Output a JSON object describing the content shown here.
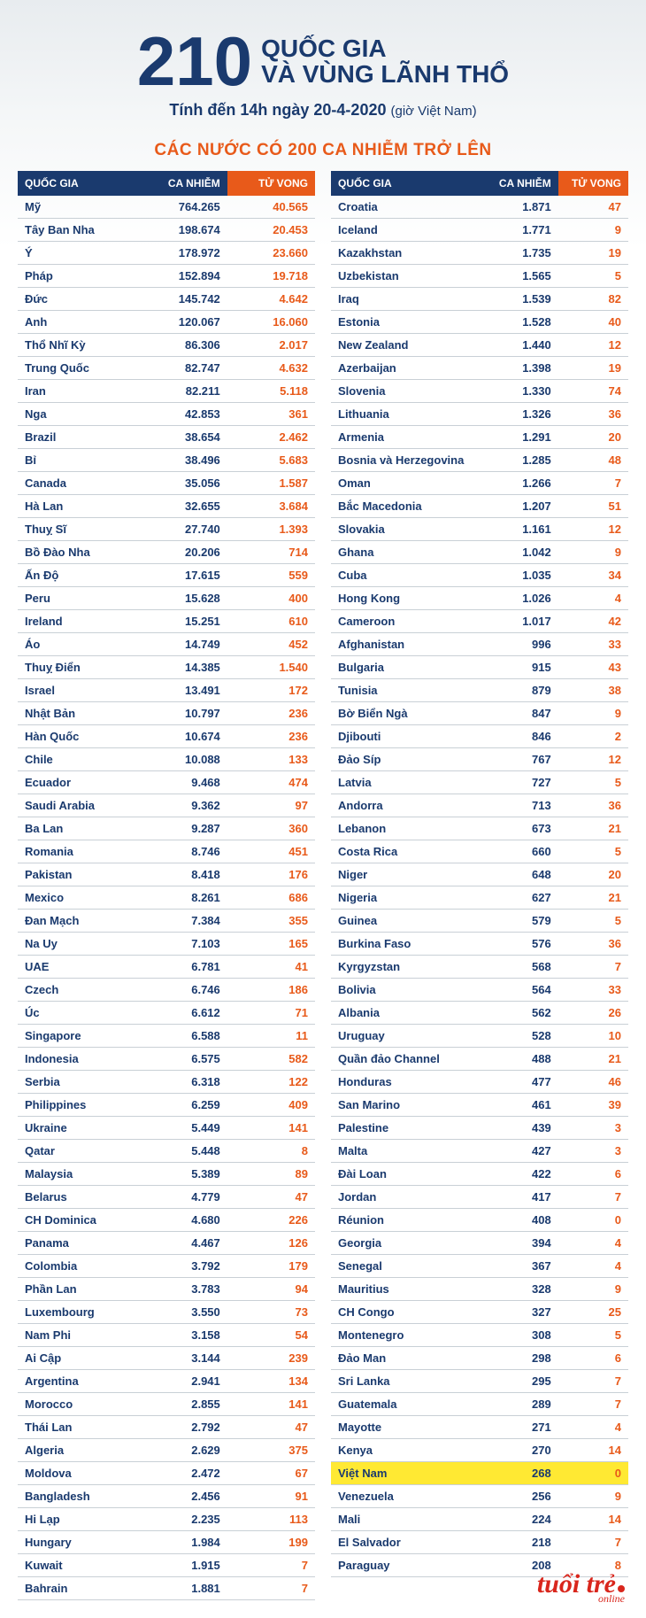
{
  "header": {
    "big_number": "210",
    "title_line1": "QUỐC GIA",
    "title_line2": "VÀ VÙNG LÃNH THỔ",
    "subtitle_main": "Tính đến 14h ngày 20-4-2020",
    "subtitle_tz": "(giờ Việt Nam)",
    "section_title": "CÁC NƯỚC CÓ 200 CA NHIỄM TRỞ LÊN"
  },
  "table": {
    "headers": {
      "country": "QUỐC GIA",
      "cases": "CA NHIỄM",
      "deaths": "TỬ VONG"
    },
    "left_rows": [
      {
        "c": "Mỹ",
        "n": "764.265",
        "d": "40.565"
      },
      {
        "c": "Tây Ban Nha",
        "n": "198.674",
        "d": "20.453"
      },
      {
        "c": "Ý",
        "n": "178.972",
        "d": "23.660"
      },
      {
        "c": "Pháp",
        "n": "152.894",
        "d": "19.718"
      },
      {
        "c": "Đức",
        "n": "145.742",
        "d": "4.642"
      },
      {
        "c": "Anh",
        "n": "120.067",
        "d": "16.060"
      },
      {
        "c": "Thổ Nhĩ Kỳ",
        "n": "86.306",
        "d": "2.017"
      },
      {
        "c": "Trung Quốc",
        "n": "82.747",
        "d": "4.632"
      },
      {
        "c": "Iran",
        "n": "82.211",
        "d": "5.118"
      },
      {
        "c": "Nga",
        "n": "42.853",
        "d": "361"
      },
      {
        "c": "Brazil",
        "n": "38.654",
        "d": "2.462"
      },
      {
        "c": "Bỉ",
        "n": "38.496",
        "d": "5.683"
      },
      {
        "c": "Canada",
        "n": "35.056",
        "d": "1.587"
      },
      {
        "c": "Hà Lan",
        "n": "32.655",
        "d": "3.684"
      },
      {
        "c": "Thuỵ Sĩ",
        "n": "27.740",
        "d": "1.393"
      },
      {
        "c": "Bồ Đào Nha",
        "n": "20.206",
        "d": "714"
      },
      {
        "c": "Ấn Độ",
        "n": "17.615",
        "d": "559"
      },
      {
        "c": "Peru",
        "n": "15.628",
        "d": "400"
      },
      {
        "c": "Ireland",
        "n": "15.251",
        "d": "610"
      },
      {
        "c": "Áo",
        "n": "14.749",
        "d": "452"
      },
      {
        "c": "Thuỵ Điển",
        "n": "14.385",
        "d": "1.540"
      },
      {
        "c": "Israel",
        "n": "13.491",
        "d": "172"
      },
      {
        "c": "Nhật Bản",
        "n": "10.797",
        "d": "236"
      },
      {
        "c": "Hàn Quốc",
        "n": "10.674",
        "d": "236"
      },
      {
        "c": "Chile",
        "n": "10.088",
        "d": "133"
      },
      {
        "c": "Ecuador",
        "n": "9.468",
        "d": "474"
      },
      {
        "c": "Saudi Arabia",
        "n": "9.362",
        "d": "97"
      },
      {
        "c": "Ba Lan",
        "n": "9.287",
        "d": "360"
      },
      {
        "c": "Romania",
        "n": "8.746",
        "d": "451"
      },
      {
        "c": "Pakistan",
        "n": "8.418",
        "d": "176"
      },
      {
        "c": "Mexico",
        "n": "8.261",
        "d": "686"
      },
      {
        "c": "Đan Mạch",
        "n": "7.384",
        "d": "355"
      },
      {
        "c": "Na Uy",
        "n": "7.103",
        "d": "165"
      },
      {
        "c": "UAE",
        "n": "6.781",
        "d": "41"
      },
      {
        "c": "Czech",
        "n": "6.746",
        "d": "186"
      },
      {
        "c": "Úc",
        "n": "6.612",
        "d": "71"
      },
      {
        "c": "Singapore",
        "n": "6.588",
        "d": "11"
      },
      {
        "c": "Indonesia",
        "n": "6.575",
        "d": "582"
      },
      {
        "c": "Serbia",
        "n": "6.318",
        "d": "122"
      },
      {
        "c": "Philippines",
        "n": "6.259",
        "d": "409"
      },
      {
        "c": "Ukraine",
        "n": "5.449",
        "d": "141"
      },
      {
        "c": "Qatar",
        "n": "5.448",
        "d": "8"
      },
      {
        "c": "Malaysia",
        "n": "5.389",
        "d": "89"
      },
      {
        "c": "Belarus",
        "n": "4.779",
        "d": "47"
      },
      {
        "c": "CH Dominica",
        "n": "4.680",
        "d": "226"
      },
      {
        "c": "Panama",
        "n": "4.467",
        "d": "126"
      },
      {
        "c": "Colombia",
        "n": "3.792",
        "d": "179"
      },
      {
        "c": "Phần Lan",
        "n": "3.783",
        "d": "94"
      },
      {
        "c": "Luxembourg",
        "n": "3.550",
        "d": "73"
      },
      {
        "c": "Nam Phi",
        "n": "3.158",
        "d": "54"
      },
      {
        "c": "Ai Cập",
        "n": "3.144",
        "d": "239"
      },
      {
        "c": "Argentina",
        "n": "2.941",
        "d": "134"
      },
      {
        "c": "Morocco",
        "n": "2.855",
        "d": "141"
      },
      {
        "c": "Thái Lan",
        "n": "2.792",
        "d": "47"
      },
      {
        "c": "Algeria",
        "n": "2.629",
        "d": "375"
      },
      {
        "c": "Moldova",
        "n": "2.472",
        "d": "67"
      },
      {
        "c": "Bangladesh",
        "n": "2.456",
        "d": "91"
      },
      {
        "c": "Hi Lạp",
        "n": "2.235",
        "d": "113"
      },
      {
        "c": "Hungary",
        "n": "1.984",
        "d": "199"
      },
      {
        "c": "Kuwait",
        "n": "1.915",
        "d": "7"
      },
      {
        "c": "Bahrain",
        "n": "1.881",
        "d": "7"
      }
    ],
    "right_rows": [
      {
        "c": "Croatia",
        "n": "1.871",
        "d": "47"
      },
      {
        "c": "Iceland",
        "n": "1.771",
        "d": "9"
      },
      {
        "c": "Kazakhstan",
        "n": "1.735",
        "d": "19"
      },
      {
        "c": "Uzbekistan",
        "n": "1.565",
        "d": "5"
      },
      {
        "c": "Iraq",
        "n": "1.539",
        "d": "82"
      },
      {
        "c": "Estonia",
        "n": "1.528",
        "d": "40"
      },
      {
        "c": "New Zealand",
        "n": "1.440",
        "d": "12"
      },
      {
        "c": "Azerbaijan",
        "n": "1.398",
        "d": "19"
      },
      {
        "c": "Slovenia",
        "n": "1.330",
        "d": "74"
      },
      {
        "c": "Lithuania",
        "n": "1.326",
        "d": "36"
      },
      {
        "c": "Armenia",
        "n": "1.291",
        "d": "20"
      },
      {
        "c": "Bosnia và Herzegovina",
        "n": "1.285",
        "d": "48"
      },
      {
        "c": "Oman",
        "n": "1.266",
        "d": "7"
      },
      {
        "c": "Bắc Macedonia",
        "n": "1.207",
        "d": "51"
      },
      {
        "c": "Slovakia",
        "n": "1.161",
        "d": "12"
      },
      {
        "c": "Ghana",
        "n": "1.042",
        "d": "9"
      },
      {
        "c": "Cuba",
        "n": "1.035",
        "d": "34"
      },
      {
        "c": "Hong Kong",
        "n": "1.026",
        "d": "4"
      },
      {
        "c": "Cameroon",
        "n": "1.017",
        "d": "42"
      },
      {
        "c": "Afghanistan",
        "n": "996",
        "d": "33"
      },
      {
        "c": "Bulgaria",
        "n": "915",
        "d": "43"
      },
      {
        "c": "Tunisia",
        "n": "879",
        "d": "38"
      },
      {
        "c": "Bờ Biển Ngà",
        "n": "847",
        "d": "9"
      },
      {
        "c": "Djibouti",
        "n": "846",
        "d": "2"
      },
      {
        "c": "Đảo Síp",
        "n": "767",
        "d": "12"
      },
      {
        "c": "Latvia",
        "n": "727",
        "d": "5"
      },
      {
        "c": "Andorra",
        "n": "713",
        "d": "36"
      },
      {
        "c": "Lebanon",
        "n": "673",
        "d": "21"
      },
      {
        "c": "Costa Rica",
        "n": "660",
        "d": "5"
      },
      {
        "c": "Niger",
        "n": "648",
        "d": "20"
      },
      {
        "c": "Nigeria",
        "n": "627",
        "d": "21"
      },
      {
        "c": "Guinea",
        "n": "579",
        "d": "5"
      },
      {
        "c": "Burkina Faso",
        "n": "576",
        "d": "36"
      },
      {
        "c": "Kyrgyzstan",
        "n": "568",
        "d": "7"
      },
      {
        "c": "Bolivia",
        "n": "564",
        "d": "33"
      },
      {
        "c": "Albania",
        "n": "562",
        "d": "26"
      },
      {
        "c": "Uruguay",
        "n": "528",
        "d": "10"
      },
      {
        "c": "Quần đảo Channel",
        "n": "488",
        "d": "21"
      },
      {
        "c": "Honduras",
        "n": "477",
        "d": "46"
      },
      {
        "c": "San Marino",
        "n": "461",
        "d": "39"
      },
      {
        "c": "Palestine",
        "n": "439",
        "d": "3"
      },
      {
        "c": "Malta",
        "n": "427",
        "d": "3"
      },
      {
        "c": "Đài Loan",
        "n": "422",
        "d": "6"
      },
      {
        "c": "Jordan",
        "n": "417",
        "d": "7"
      },
      {
        "c": "Réunion",
        "n": "408",
        "d": "0"
      },
      {
        "c": "Georgia",
        "n": "394",
        "d": "4"
      },
      {
        "c": "Senegal",
        "n": "367",
        "d": "4"
      },
      {
        "c": "Mauritius",
        "n": "328",
        "d": "9"
      },
      {
        "c": "CH Congo",
        "n": "327",
        "d": "25"
      },
      {
        "c": "Montenegro",
        "n": "308",
        "d": "5"
      },
      {
        "c": "Đảo Man",
        "n": "298",
        "d": "6"
      },
      {
        "c": "Sri Lanka",
        "n": "295",
        "d": "7"
      },
      {
        "c": "Guatemala",
        "n": "289",
        "d": "7"
      },
      {
        "c": "Mayotte",
        "n": "271",
        "d": "4"
      },
      {
        "c": "Kenya",
        "n": "270",
        "d": "14"
      },
      {
        "c": "Việt Nam",
        "n": "268",
        "d": "0",
        "hl": true
      },
      {
        "c": "Venezuela",
        "n": "256",
        "d": "9"
      },
      {
        "c": "Mali",
        "n": "224",
        "d": "14"
      },
      {
        "c": "El Salvador",
        "n": "218",
        "d": "7"
      },
      {
        "c": "Paraguay",
        "n": "208",
        "d": "8"
      }
    ]
  },
  "colors": {
    "navy": "#1a3a6e",
    "orange": "#e85a1a",
    "highlight": "#ffe933",
    "border": "#c9d0d6"
  },
  "logo": {
    "main": "tuổi trẻ",
    "sub": "online"
  }
}
